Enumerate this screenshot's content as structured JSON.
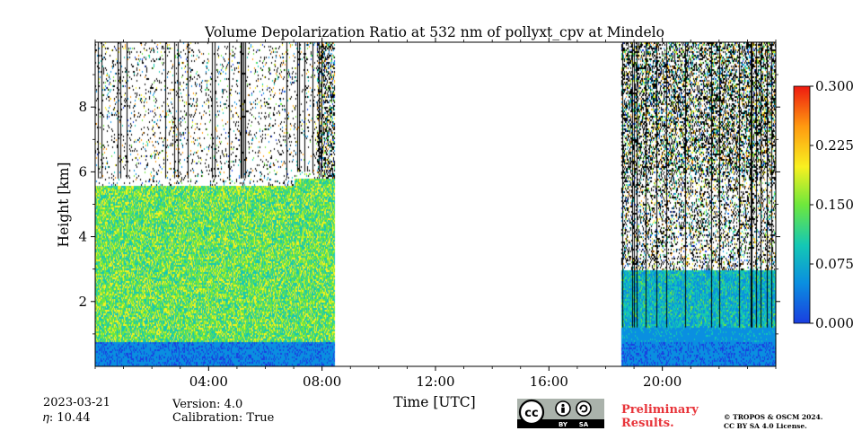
{
  "chart_data": {
    "type": "heatmap",
    "title": "Volume Depolarization Ratio at 532 nm of pollyxt_cpv at Mindelo",
    "xlabel": "Time [UTC]",
    "ylabel": "Height [km]",
    "x_unit": "hours UTC",
    "xlim": [
      0,
      24
    ],
    "ylim": [
      0,
      10
    ],
    "x_ticks": [
      {
        "value": 4,
        "label": "04:00"
      },
      {
        "value": 8,
        "label": "08:00"
      },
      {
        "value": 12,
        "label": "12:00"
      },
      {
        "value": 16,
        "label": "16:00"
      },
      {
        "value": 20,
        "label": "20:00"
      }
    ],
    "y_ticks": [
      {
        "value": 2,
        "label": "2"
      },
      {
        "value": 4,
        "label": "4"
      },
      {
        "value": 6,
        "label": "6"
      },
      {
        "value": 8,
        "label": "8"
      }
    ],
    "colorbar": {
      "min": 0.0,
      "max": 0.3,
      "ticks": [
        "0.000",
        "0.075",
        "0.150",
        "0.225",
        "0.300"
      ],
      "colormap": [
        "#1a3ee0",
        "#0a8fe0",
        "#14c8b4",
        "#6ee83c",
        "#f8f020",
        "#ff9a10",
        "#ee1a10"
      ]
    },
    "data_segments": [
      {
        "start": 0.0,
        "end": 8.45
      },
      {
        "start": 18.55,
        "end": 24.0
      }
    ],
    "no_data_gap": [
      8.45,
      18.55
    ],
    "grid": false
  },
  "footer": {
    "date": "2023-03-21",
    "eta": "𝜂: 10.44",
    "version": "Version: 4.0",
    "calibration": "Calibration: True",
    "preliminary_line1": "Preliminary",
    "preliminary_line2": "Results.",
    "copyright_line1": "© TROPOS & OSCM 2024.",
    "copyright_line2": "CC BY SA 4.0 License.",
    "cc_badge": "cc",
    "cc_by": "BY",
    "cc_sa": "SA"
  }
}
